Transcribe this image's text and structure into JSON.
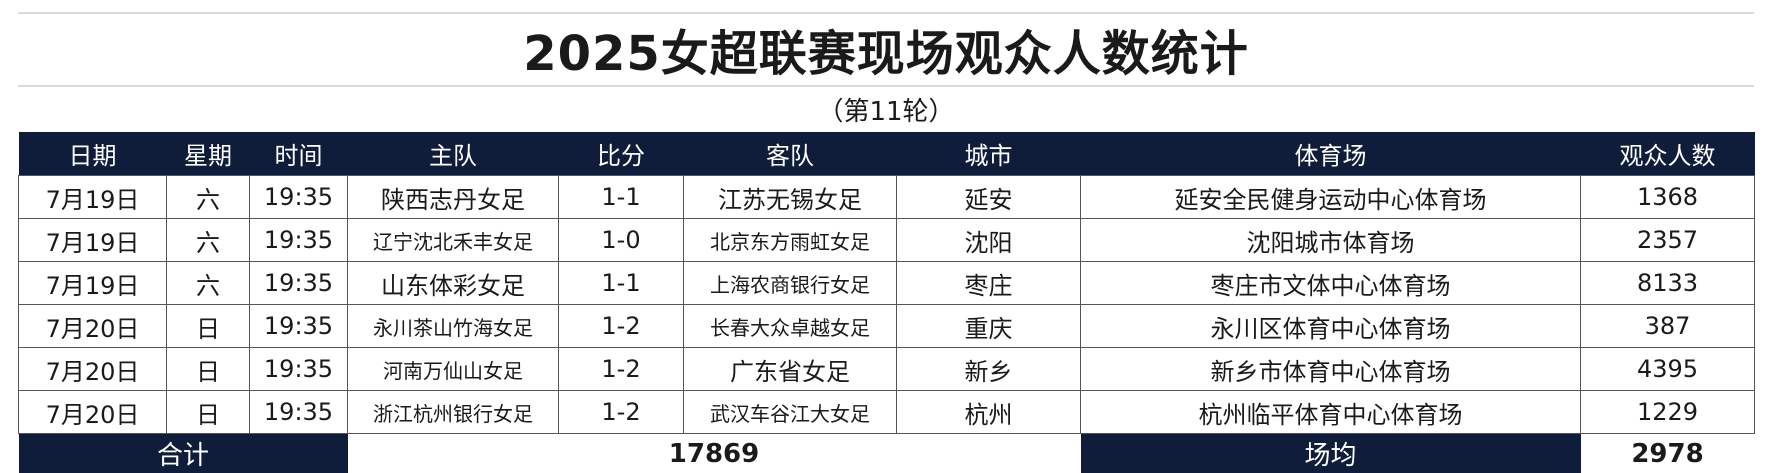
{
  "title": "2025女超联赛现场观众人数统计",
  "subtitle": "（第11轮）",
  "colors": {
    "header_bg": "#0f1d3a",
    "header_text": "#ffffff"
  },
  "table": {
    "headers": [
      "日期",
      "星期",
      "时间",
      "主队",
      "比分",
      "客队",
      "城市",
      "体育场",
      "观众人数"
    ],
    "rows": [
      [
        "7月19日",
        "六",
        "19:35",
        "陕西志丹女足",
        "1-1",
        "江苏无锡女足",
        "延安",
        "延安全民健身运动中心体育场",
        "1368"
      ],
      [
        "7月19日",
        "六",
        "19:35",
        "辽宁沈北禾丰女足",
        "1-0",
        "北京东方雨虹女足",
        "沈阳",
        "沈阳城市体育场",
        "2357"
      ],
      [
        "7月19日",
        "六",
        "19:35",
        "山东体彩女足",
        "1-1",
        "上海农商银行女足",
        "枣庄",
        "枣庄市文体中心体育场",
        "8133"
      ],
      [
        "7月20日",
        "日",
        "19:35",
        "永川茶山竹海女足",
        "1-2",
        "长春大众卓越女足",
        "重庆",
        "永川区体育中心体育场",
        "387"
      ],
      [
        "7月20日",
        "日",
        "19:35",
        "河南万仙山女足",
        "1-2",
        "广东省女足",
        "新乡",
        "新乡市体育中心体育场",
        "4395"
      ],
      [
        "7月20日",
        "日",
        "19:35",
        "浙江杭州银行女足",
        "1-2",
        "武汉车谷江大女足",
        "杭州",
        "杭州临平体育中心体育场",
        "1229"
      ]
    ],
    "total_label": "合计",
    "total_value": "17869",
    "average_label": "场均",
    "average_value": "2978"
  }
}
